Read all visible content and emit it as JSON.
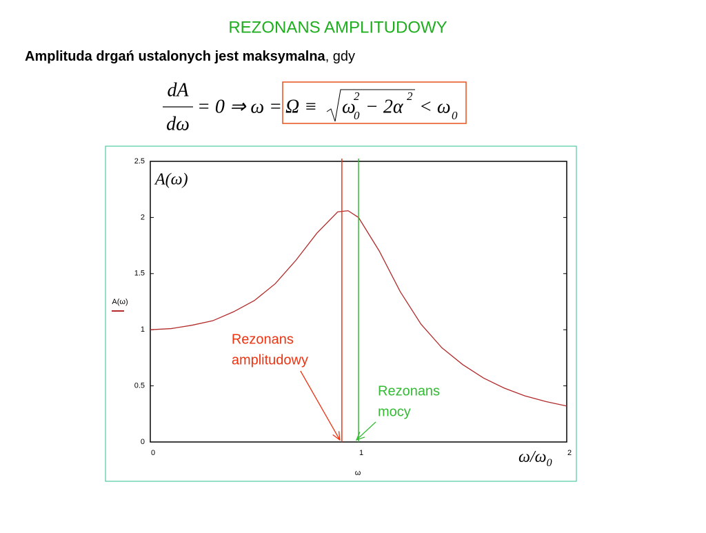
{
  "slide": {
    "title": "REZONANS AMPLITUDOWY",
    "subtitle_bold": "Amplituda drgań ustalonych jest maksymalna",
    "subtitle_rest": ", gdy",
    "formula": {
      "numerator": "dA",
      "denominator": "dω",
      "lead": "= 0 ⇒ ω =",
      "boxed": [
        "Ω ≡",
        "ω",
        "2",
        "0",
        "− 2α",
        "2",
        "< ω",
        "0"
      ]
    }
  },
  "chart_data": {
    "type": "line",
    "x_label": "ω",
    "inner_y_label": "A(ω)",
    "inner_x_label": [
      "ω/ω",
      "0"
    ],
    "x": [
      0,
      0.1,
      0.2,
      0.3,
      0.4,
      0.5,
      0.6,
      0.7,
      0.8,
      0.9,
      0.95,
      1.0,
      1.1,
      1.2,
      1.3,
      1.4,
      1.5,
      1.6,
      1.7,
      1.8,
      1.9,
      2.0
    ],
    "series": [
      {
        "name": "A(ω)",
        "color": "#b22a2a",
        "values": [
          1,
          1.01,
          1.04,
          1.08,
          1.16,
          1.26,
          1.41,
          1.62,
          1.86,
          2.05,
          2.06,
          2.0,
          1.7,
          1.34,
          1.05,
          0.84,
          0.69,
          0.57,
          0.48,
          0.41,
          0.36,
          0.32
        ]
      }
    ],
    "xlim": [
      0,
      2
    ],
    "ylim": [
      0,
      2.5
    ],
    "xticks": [
      0,
      1,
      2
    ],
    "yticks": [
      0,
      0.5,
      1,
      1.5,
      2,
      2.5
    ],
    "markers": [
      {
        "x": 0.92,
        "color": "#ee3311",
        "label": [
          "Rezonans",
          "amplitudowy"
        ]
      },
      {
        "x": 1,
        "color": "#33bb33",
        "label": [
          "Rezonans",
          "mocy"
        ]
      }
    ]
  }
}
